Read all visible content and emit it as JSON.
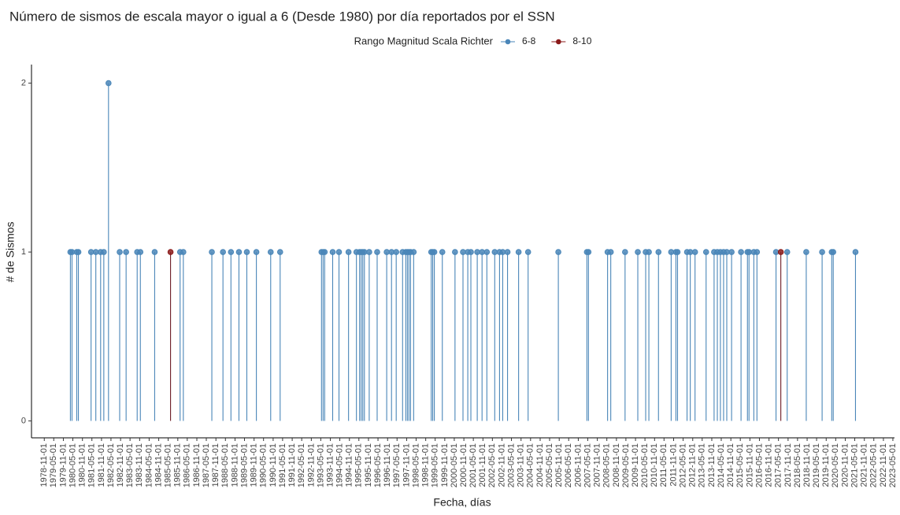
{
  "chart_data": {
    "type": "lollipop",
    "title": "Número de sismos de escala mayor o igual a 6 (Desde 1980) por día reportados por el SSN",
    "legend_title": "Rango Magnitud Scala Richter",
    "x_label": "Fecha, días",
    "y_label": "# de Sismos",
    "series": [
      {
        "name": "6-8",
        "color": "#4a86b8",
        "x": [
          "1980-03-15",
          "1980-04-15",
          "1980-07-15",
          "1980-08-15",
          "1981-04-15",
          "1981-07-15",
          "1981-10-15",
          "1981-12-15",
          "1982-03-15",
          "1982-10-15",
          "1983-02-15",
          "1983-09-15",
          "1983-11-15",
          "1984-08-15",
          "1985-12-15",
          "1986-02-15",
          "1987-08-15",
          "1988-03-15",
          "1988-08-15",
          "1989-01-15",
          "1989-06-15",
          "1989-12-15",
          "1990-09-15",
          "1991-03-15",
          "1993-05-15",
          "1993-06-15",
          "1993-07-15",
          "1993-12-15",
          "1994-04-15",
          "1994-10-15",
          "1995-03-15",
          "1995-05-15",
          "1995-06-15",
          "1995-07-15",
          "1995-08-15",
          "1995-11-15",
          "1996-04-15",
          "1996-10-15",
          "1997-01-15",
          "1997-04-15",
          "1997-08-15",
          "1997-10-15",
          "1997-11-15",
          "1997-12-15",
          "1998-01-15",
          "1998-03-15",
          "1999-02-15",
          "1999-03-15",
          "1999-04-15",
          "1999-09-15",
          "2000-05-15",
          "2000-10-15",
          "2001-01-15",
          "2001-03-15",
          "2001-07-15",
          "2001-10-15",
          "2002-01-15",
          "2002-06-15",
          "2002-09-15",
          "2002-11-15",
          "2003-02-15",
          "2003-09-15",
          "2004-03-15",
          "2005-10-15",
          "2007-04-15",
          "2007-05-15",
          "2008-05-15",
          "2008-07-15",
          "2009-04-15",
          "2009-12-15",
          "2010-05-15",
          "2010-07-15",
          "2011-01-15",
          "2011-09-15",
          "2011-12-15",
          "2012-01-15",
          "2012-07-15",
          "2012-09-15",
          "2012-12-15",
          "2013-07-15",
          "2013-12-15",
          "2014-02-15",
          "2014-04-15",
          "2014-06-15",
          "2014-08-15",
          "2014-11-15",
          "2015-05-15",
          "2015-09-15",
          "2015-10-15",
          "2016-01-15",
          "2016-03-15",
          "2017-03-15",
          "2017-10-15",
          "2018-10-15",
          "2019-08-15",
          "2020-02-15",
          "2020-03-15",
          "2021-05-15"
        ],
        "values": [
          1,
          1,
          1,
          1,
          1,
          1,
          1,
          1,
          2,
          1,
          1,
          1,
          1,
          1,
          1,
          1,
          1,
          1,
          1,
          1,
          1,
          1,
          1,
          1,
          1,
          1,
          1,
          1,
          1,
          1,
          1,
          1,
          1,
          1,
          1,
          1,
          1,
          1,
          1,
          1,
          1,
          1,
          1,
          1,
          1,
          1,
          1,
          1,
          1,
          1,
          1,
          1,
          1,
          1,
          1,
          1,
          1,
          1,
          1,
          1,
          1,
          1,
          1,
          1,
          1,
          1,
          1,
          1,
          1,
          1,
          1,
          1,
          1,
          1,
          1,
          1,
          1,
          1,
          1,
          1,
          1,
          1,
          1,
          1,
          1,
          1,
          1,
          1,
          1,
          1,
          1,
          1,
          1,
          1,
          1,
          1,
          1,
          1
        ]
      },
      {
        "name": "8-10",
        "color": "#8b1a1a",
        "x": [
          "1985-06-15",
          "2017-06-15"
        ],
        "values": [
          1,
          1
        ]
      }
    ],
    "xlim": [
      "1978-03-01",
      "2023-06-01"
    ],
    "xticks": [
      "1978-11-01",
      "1979-05-01",
      "1979-11-01",
      "1980-05-01",
      "1980-11-01",
      "1981-05-01",
      "1981-11-01",
      "1982-05-01",
      "1982-11-01",
      "1983-05-01",
      "1983-11-01",
      "1984-05-01",
      "1984-11-01",
      "1985-05-01",
      "1985-11-01",
      "1986-05-01",
      "1986-11-01",
      "1987-05-01",
      "1987-11-01",
      "1988-05-01",
      "1988-11-01",
      "1989-05-01",
      "1989-11-01",
      "1990-05-01",
      "1990-11-01",
      "1991-05-01",
      "1991-11-01",
      "1992-05-01",
      "1992-11-01",
      "1993-05-01",
      "1993-11-01",
      "1994-05-01",
      "1994-11-01",
      "1995-05-01",
      "1995-11-01",
      "1996-05-01",
      "1996-11-01",
      "1997-05-01",
      "1997-11-01",
      "1998-05-01",
      "1998-11-01",
      "1999-05-01",
      "1999-11-01",
      "2000-05-01",
      "2000-11-01",
      "2001-05-01",
      "2001-11-01",
      "2002-05-01",
      "2002-11-01",
      "2003-05-01",
      "2003-11-01",
      "2004-05-01",
      "2004-11-01",
      "2005-05-01",
      "2005-11-01",
      "2006-05-01",
      "2006-11-01",
      "2007-05-01",
      "2007-11-01",
      "2008-05-01",
      "2008-11-01",
      "2009-05-01",
      "2009-11-01",
      "2010-05-01",
      "2010-11-01",
      "2011-05-01",
      "2011-11-01",
      "2012-05-01",
      "2012-11-01",
      "2013-05-01",
      "2013-11-01",
      "2014-05-01",
      "2014-11-01",
      "2015-05-01",
      "2015-11-01",
      "2016-05-01",
      "2016-11-01",
      "2017-05-01",
      "2017-11-01",
      "2018-05-01",
      "2018-11-01",
      "2019-05-01",
      "2019-11-01",
      "2020-05-01",
      "2020-11-01",
      "2021-05-01",
      "2021-11-01",
      "2022-05-01",
      "2022-11-01",
      "2023-05-01"
    ],
    "ylim": [
      -0.1,
      2.11
    ],
    "yticks": [
      0,
      1,
      2
    ],
    "legend_position": "top"
  }
}
